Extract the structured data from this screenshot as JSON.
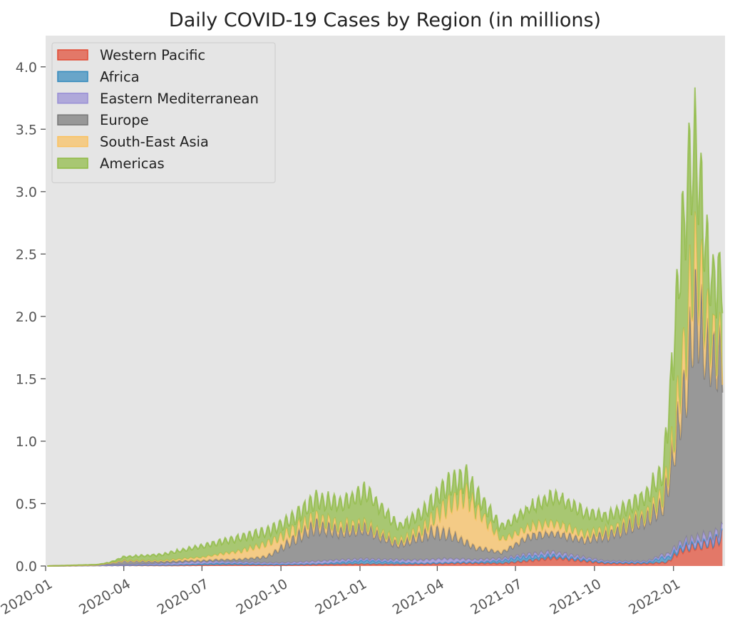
{
  "chart_data": {
    "type": "area",
    "stacked": true,
    "title": "Daily COVID-19 Cases by Region (in millions)",
    "xlabel": "",
    "ylabel": "",
    "xlim": [
      "2020-01-01",
      "2022-03-02"
    ],
    "ylim": [
      0,
      4.25
    ],
    "x_ticks": [
      "2020-01",
      "2020-04",
      "2020-07",
      "2020-10",
      "2021-01",
      "2021-04",
      "2021-07",
      "2021-10",
      "2022-01"
    ],
    "x_tick_dates": [
      "2020-01-01",
      "2020-04-01",
      "2020-07-01",
      "2020-10-01",
      "2021-01-01",
      "2021-04-01",
      "2021-07-01",
      "2021-10-01",
      "2022-01-01"
    ],
    "y_ticks": [
      "0.0",
      "0.5",
      "1.0",
      "1.5",
      "2.0",
      "2.5",
      "3.0",
      "3.5",
      "4.0"
    ],
    "y_tick_values": [
      0,
      0.5,
      1.0,
      1.5,
      2.0,
      2.5,
      3.0,
      3.5,
      4.0
    ],
    "grid": false,
    "legend_position": "top-left",
    "background_color": "#e5e5e5",
    "line_alpha_note": "",
    "series": [
      {
        "name": "Western Pacific",
        "color": "#e24a33",
        "points": [
          [
            "2020-01-03",
            0
          ],
          [
            "2020-03-01",
            0.004
          ],
          [
            "2020-04-01",
            0.005
          ],
          [
            "2020-06-01",
            0.004
          ],
          [
            "2020-08-01",
            0.008
          ],
          [
            "2020-10-01",
            0.006
          ],
          [
            "2020-12-01",
            0.012
          ],
          [
            "2021-01-01",
            0.015
          ],
          [
            "2021-03-01",
            0.012
          ],
          [
            "2021-05-01",
            0.022
          ],
          [
            "2021-06-15",
            0.02
          ],
          [
            "2021-07-15",
            0.04
          ],
          [
            "2021-08-15",
            0.065
          ],
          [
            "2021-09-05",
            0.05
          ],
          [
            "2021-10-15",
            0.02
          ],
          [
            "2021-12-01",
            0.018
          ],
          [
            "2021-12-25",
            0.03
          ],
          [
            "2022-01-05",
            0.1
          ],
          [
            "2022-01-15",
            0.14
          ],
          [
            "2022-02-01",
            0.16
          ],
          [
            "2022-02-15",
            0.19
          ],
          [
            "2022-02-27",
            0.24
          ]
        ]
      },
      {
        "name": "Africa",
        "color": "#348abd",
        "points": [
          [
            "2020-01-03",
            0
          ],
          [
            "2020-04-01",
            0.001
          ],
          [
            "2020-06-01",
            0.005
          ],
          [
            "2020-07-20",
            0.014
          ],
          [
            "2020-09-15",
            0.007
          ],
          [
            "2020-11-15",
            0.008
          ],
          [
            "2021-01-10",
            0.027
          ],
          [
            "2021-03-15",
            0.008
          ],
          [
            "2021-05-15",
            0.008
          ],
          [
            "2021-07-10",
            0.035
          ],
          [
            "2021-08-20",
            0.017
          ],
          [
            "2021-10-15",
            0.007
          ],
          [
            "2021-12-01",
            0.01
          ],
          [
            "2021-12-20",
            0.04
          ],
          [
            "2022-01-10",
            0.02
          ],
          [
            "2022-02-01",
            0.012
          ],
          [
            "2022-02-27",
            0.01
          ]
        ]
      },
      {
        "name": "Eastern Mediterranean",
        "color": "#988ed5",
        "points": [
          [
            "2020-01-03",
            0
          ],
          [
            "2020-04-01",
            0.003
          ],
          [
            "2020-06-15",
            0.018
          ],
          [
            "2020-08-01",
            0.012
          ],
          [
            "2020-10-01",
            0.011
          ],
          [
            "2020-11-25",
            0.02
          ],
          [
            "2021-01-15",
            0.012
          ],
          [
            "2021-04-10",
            0.03
          ],
          [
            "2021-05-20",
            0.018
          ],
          [
            "2021-07-01",
            0.013
          ],
          [
            "2021-08-10",
            0.025
          ],
          [
            "2021-10-15",
            0.01
          ],
          [
            "2021-12-01",
            0.008
          ],
          [
            "2022-01-20",
            0.04
          ],
          [
            "2022-02-05",
            0.05
          ],
          [
            "2022-02-27",
            0.04
          ]
        ]
      },
      {
        "name": "Europe",
        "color": "#777777",
        "points": [
          [
            "2020-01-03",
            0
          ],
          [
            "2020-03-01",
            0.001
          ],
          [
            "2020-04-01",
            0.032
          ],
          [
            "2020-05-15",
            0.015
          ],
          [
            "2020-07-01",
            0.01
          ],
          [
            "2020-08-15",
            0.022
          ],
          [
            "2020-09-15",
            0.05
          ],
          [
            "2020-10-15",
            0.18
          ],
          [
            "2020-11-10",
            0.28
          ],
          [
            "2020-12-10",
            0.23
          ],
          [
            "2021-01-05",
            0.25
          ],
          [
            "2021-02-15",
            0.12
          ],
          [
            "2021-03-25",
            0.22
          ],
          [
            "2021-04-15",
            0.2
          ],
          [
            "2021-05-15",
            0.1
          ],
          [
            "2021-06-15",
            0.05
          ],
          [
            "2021-07-20",
            0.15
          ],
          [
            "2021-08-20",
            0.15
          ],
          [
            "2021-09-20",
            0.14
          ],
          [
            "2021-10-20",
            0.22
          ],
          [
            "2021-11-25",
            0.33
          ],
          [
            "2021-12-20",
            0.4
          ],
          [
            "2022-01-05",
            0.9
          ],
          [
            "2022-01-15",
            1.2
          ],
          [
            "2022-01-25",
            1.85
          ],
          [
            "2022-02-10",
            1.45
          ],
          [
            "2022-02-27",
            1.4
          ]
        ]
      },
      {
        "name": "South-East Asia",
        "color": "#fbc15e",
        "points": [
          [
            "2020-01-03",
            0
          ],
          [
            "2020-04-01",
            0.001
          ],
          [
            "2020-05-15",
            0.006
          ],
          [
            "2020-07-01",
            0.025
          ],
          [
            "2020-08-15",
            0.065
          ],
          [
            "2020-09-15",
            0.1
          ],
          [
            "2020-10-15",
            0.075
          ],
          [
            "2020-11-20",
            0.05
          ],
          [
            "2021-01-05",
            0.025
          ],
          [
            "2021-02-15",
            0.02
          ],
          [
            "2021-03-20",
            0.06
          ],
          [
            "2021-04-10",
            0.2
          ],
          [
            "2021-05-05",
            0.38
          ],
          [
            "2021-05-25",
            0.25
          ],
          [
            "2021-06-15",
            0.1
          ],
          [
            "2021-07-15",
            0.07
          ],
          [
            "2021-08-15",
            0.08
          ],
          [
            "2021-09-15",
            0.05
          ],
          [
            "2021-10-15",
            0.03
          ],
          [
            "2021-12-01",
            0.025
          ],
          [
            "2022-01-01",
            0.1
          ],
          [
            "2022-01-20",
            0.45
          ],
          [
            "2022-02-01",
            0.35
          ],
          [
            "2022-02-15",
            0.15
          ],
          [
            "2022-02-27",
            0.08
          ]
        ]
      },
      {
        "name": "Americas",
        "color": "#8eba42",
        "points": [
          [
            "2020-01-03",
            0
          ],
          [
            "2020-03-15",
            0.004
          ],
          [
            "2020-04-01",
            0.03
          ],
          [
            "2020-05-15",
            0.05
          ],
          [
            "2020-07-01",
            0.09
          ],
          [
            "2020-08-15",
            0.11
          ],
          [
            "2020-09-15",
            0.1
          ],
          [
            "2020-10-15",
            0.1
          ],
          [
            "2020-11-15",
            0.16
          ],
          [
            "2020-12-15",
            0.2
          ],
          [
            "2021-01-10",
            0.27
          ],
          [
            "2021-02-15",
            0.12
          ],
          [
            "2021-03-20",
            0.14
          ],
          [
            "2021-04-15",
            0.17
          ],
          [
            "2021-05-15",
            0.12
          ],
          [
            "2021-06-15",
            0.1
          ],
          [
            "2021-07-15",
            0.15
          ],
          [
            "2021-08-15",
            0.22
          ],
          [
            "2021-09-15",
            0.18
          ],
          [
            "2021-10-15",
            0.12
          ],
          [
            "2021-11-20",
            0.14
          ],
          [
            "2021-12-20",
            0.2
          ],
          [
            "2022-01-05",
            0.9
          ],
          [
            "2022-01-15",
            1.15
          ],
          [
            "2022-01-25",
            0.9
          ],
          [
            "2022-02-05",
            0.65
          ],
          [
            "2022-02-15",
            0.45
          ],
          [
            "2022-02-27",
            0.55
          ]
        ]
      }
    ]
  }
}
